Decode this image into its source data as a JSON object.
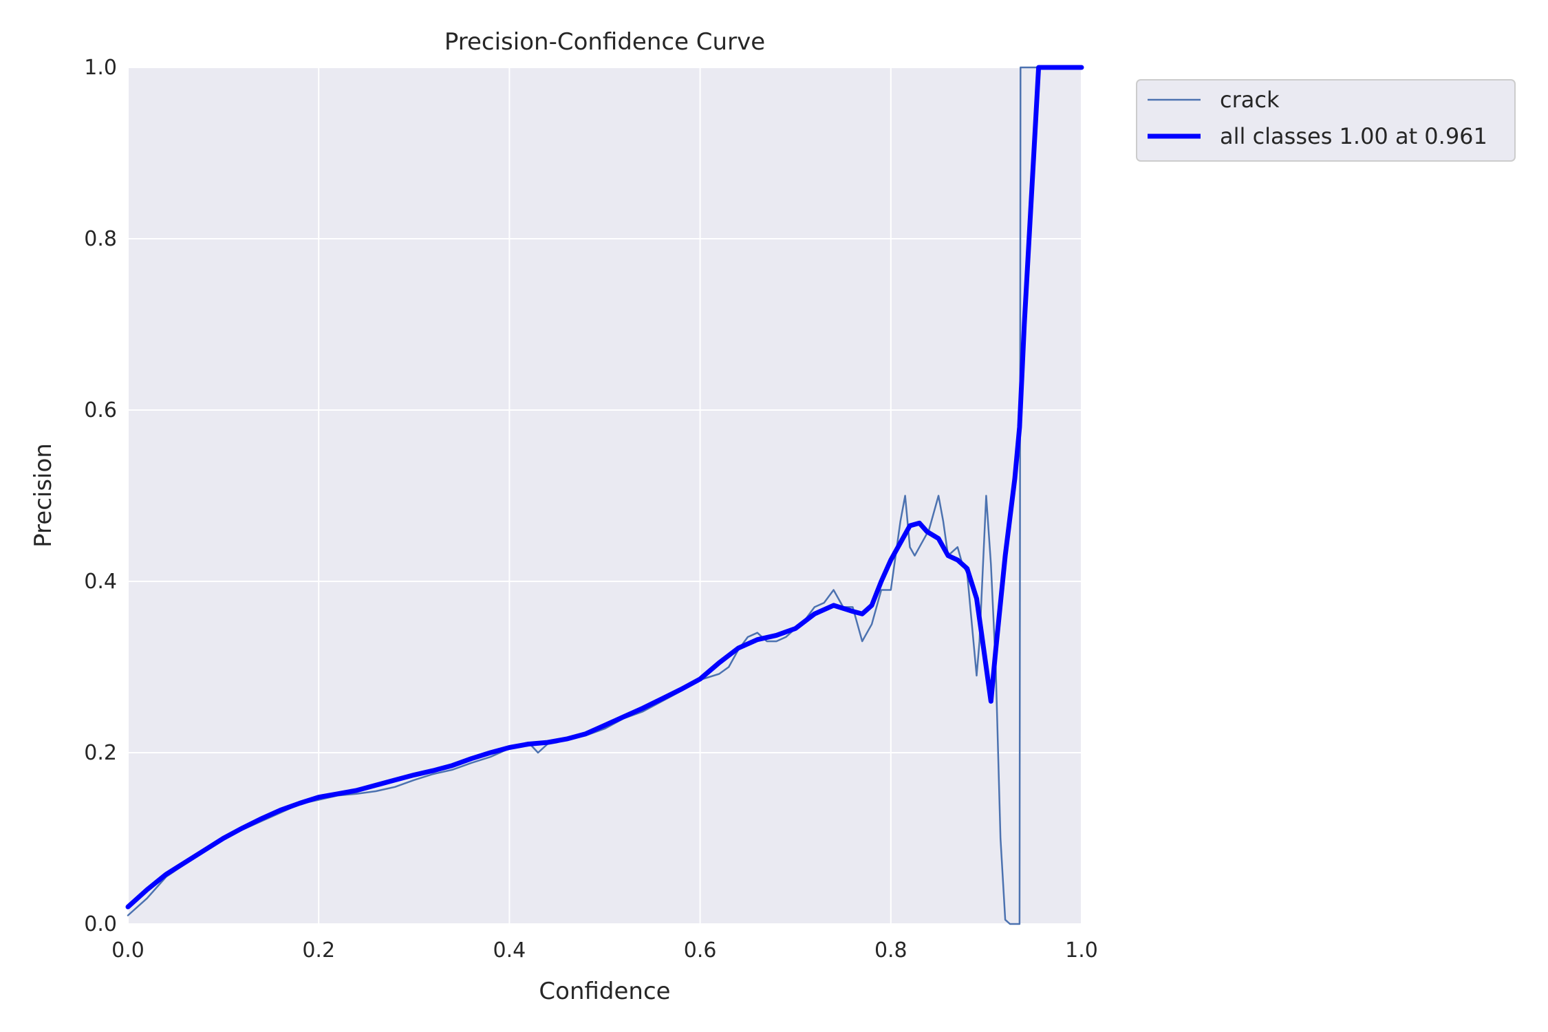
{
  "chart_data": {
    "type": "line",
    "title": "Precision-Confidence Curve",
    "xlabel": "Confidence",
    "ylabel": "Precision",
    "xlim": [
      0,
      1
    ],
    "ylim": [
      0,
      1
    ],
    "xticks": [
      "0.0",
      "0.2",
      "0.4",
      "0.6",
      "0.8",
      "1.0"
    ],
    "yticks": [
      "0.0",
      "0.2",
      "0.4",
      "0.6",
      "0.8",
      "1.0"
    ],
    "grid": true,
    "legend_position": "outside-top-right",
    "colors": {
      "plot_bg": "#eaeaf2",
      "grid": "#ffffff",
      "crack": "#4c72b0",
      "all_classes": "#0000ff"
    },
    "series": [
      {
        "name": "crack",
        "x": [
          0.0,
          0.02,
          0.04,
          0.06,
          0.08,
          0.1,
          0.12,
          0.14,
          0.16,
          0.18,
          0.2,
          0.22,
          0.24,
          0.26,
          0.28,
          0.3,
          0.32,
          0.34,
          0.36,
          0.38,
          0.4,
          0.42,
          0.43,
          0.44,
          0.45,
          0.46,
          0.48,
          0.5,
          0.52,
          0.54,
          0.56,
          0.58,
          0.6,
          0.62,
          0.63,
          0.64,
          0.65,
          0.66,
          0.67,
          0.68,
          0.69,
          0.7,
          0.71,
          0.72,
          0.73,
          0.74,
          0.75,
          0.76,
          0.77,
          0.78,
          0.79,
          0.8,
          0.81,
          0.815,
          0.82,
          0.825,
          0.83,
          0.84,
          0.85,
          0.855,
          0.86,
          0.87,
          0.875,
          0.88,
          0.89,
          0.893,
          0.9,
          0.905,
          0.91,
          0.915,
          0.92,
          0.925,
          0.935,
          0.936,
          0.937,
          0.94,
          0.95,
          0.96,
          1.0
        ],
        "y": [
          0.01,
          0.03,
          0.055,
          0.07,
          0.085,
          0.1,
          0.11,
          0.12,
          0.13,
          0.14,
          0.145,
          0.15,
          0.152,
          0.155,
          0.16,
          0.168,
          0.175,
          0.18,
          0.188,
          0.195,
          0.205,
          0.212,
          0.2,
          0.21,
          0.212,
          0.215,
          0.22,
          0.228,
          0.24,
          0.248,
          0.26,
          0.272,
          0.285,
          0.292,
          0.3,
          0.32,
          0.335,
          0.34,
          0.33,
          0.33,
          0.335,
          0.345,
          0.355,
          0.37,
          0.375,
          0.39,
          0.37,
          0.37,
          0.33,
          0.35,
          0.39,
          0.39,
          0.47,
          0.5,
          0.44,
          0.43,
          0.44,
          0.46,
          0.5,
          0.47,
          0.43,
          0.44,
          0.42,
          0.41,
          0.29,
          0.33,
          0.5,
          0.42,
          0.3,
          0.1,
          0.005,
          0.0,
          0.0,
          1.0,
          1.0,
          1.0,
          1.0,
          1.0,
          1.0
        ]
      },
      {
        "name": "all classes 1.00 at 0.961",
        "x": [
          0.0,
          0.02,
          0.04,
          0.06,
          0.08,
          0.1,
          0.12,
          0.14,
          0.16,
          0.18,
          0.2,
          0.22,
          0.24,
          0.26,
          0.28,
          0.3,
          0.32,
          0.34,
          0.36,
          0.38,
          0.4,
          0.42,
          0.44,
          0.46,
          0.48,
          0.5,
          0.52,
          0.54,
          0.56,
          0.58,
          0.6,
          0.62,
          0.64,
          0.66,
          0.68,
          0.7,
          0.72,
          0.74,
          0.76,
          0.77,
          0.78,
          0.79,
          0.8,
          0.81,
          0.82,
          0.83,
          0.838,
          0.85,
          0.86,
          0.87,
          0.88,
          0.89,
          0.895,
          0.9,
          0.905,
          0.91,
          0.92,
          0.93,
          0.935,
          0.94,
          0.95,
          0.955,
          0.961,
          0.97,
          1.0
        ],
        "y": [
          0.02,
          0.04,
          0.058,
          0.072,
          0.086,
          0.1,
          0.112,
          0.123,
          0.133,
          0.141,
          0.148,
          0.152,
          0.156,
          0.162,
          0.168,
          0.174,
          0.179,
          0.185,
          0.193,
          0.2,
          0.206,
          0.21,
          0.212,
          0.216,
          0.222,
          0.232,
          0.242,
          0.252,
          0.263,
          0.274,
          0.286,
          0.305,
          0.322,
          0.332,
          0.337,
          0.345,
          0.362,
          0.372,
          0.365,
          0.362,
          0.372,
          0.4,
          0.425,
          0.445,
          0.465,
          0.468,
          0.458,
          0.45,
          0.43,
          0.425,
          0.415,
          0.38,
          0.34,
          0.3,
          0.26,
          0.32,
          0.43,
          0.52,
          0.58,
          0.7,
          0.9,
          1.0,
          1.0,
          1.0,
          1.0
        ]
      }
    ]
  }
}
